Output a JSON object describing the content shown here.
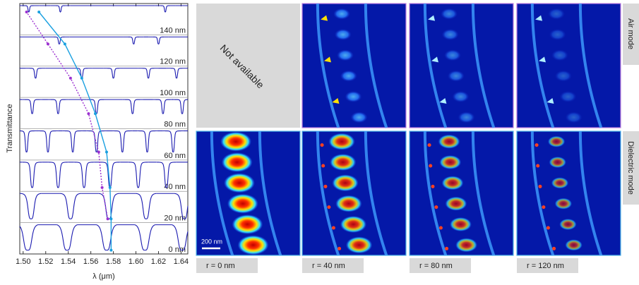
{
  "chart_data": {
    "type": "line",
    "ylabel": "Transmittance",
    "xlabel": "λ (μm)",
    "xlim": [
      1.497,
      1.646
    ],
    "xticks": [
      {
        "value": 1.5,
        "label": "1.50"
      },
      {
        "value": 1.52,
        "label": "1.52"
      },
      {
        "value": 1.54,
        "label": "1.54"
      },
      {
        "value": 1.56,
        "label": "1.56"
      },
      {
        "value": 1.58,
        "label": "1.58"
      },
      {
        "value": 1.6,
        "label": "1.60"
      },
      {
        "value": 1.62,
        "label": "1.62"
      },
      {
        "value": 1.64,
        "label": "1.64"
      }
    ],
    "series": [
      {
        "name": "0 nm",
        "color": "#1a1ab0",
        "dips": [
          1.504,
          1.539,
          1.574,
          1.608,
          1.641
        ]
      },
      {
        "name": "20 nm",
        "color": "#1a1ab0",
        "dips": [
          1.507,
          1.542,
          1.576,
          1.609,
          1.643
        ]
      },
      {
        "name": "40 nm",
        "color": "#1a1ab0",
        "dips": [
          1.508,
          1.531,
          1.554,
          1.577,
          1.602,
          1.627
        ]
      },
      {
        "name": "60 nm",
        "color": "#1a1ab0",
        "dips": [
          1.503,
          1.522,
          1.544,
          1.565,
          1.588,
          1.61,
          1.633
        ]
      },
      {
        "name": "80 nm",
        "color": "#1a1ab0",
        "dips": [
          1.508,
          1.531,
          1.565,
          1.597,
          1.624,
          1.641
        ]
      },
      {
        "name": "100 nm",
        "color": "#1a1ab0",
        "dips": [
          1.511,
          1.552,
          1.58,
          1.611,
          1.636
        ]
      },
      {
        "name": "120 nm",
        "color": "#1a1ab0",
        "dips": [
          1.532,
          1.598,
          1.62
        ]
      },
      {
        "name": "140 nm",
        "color": "#1a1ab0",
        "dips": [
          1.505,
          1.533,
          1.626
        ]
      }
    ],
    "dielectric_mode": {
      "color": "#1aa0e0",
      "values": [
        1.578,
        1.578,
        1.577,
        1.574,
        1.564,
        1.552,
        1.537,
        1.514
      ]
    },
    "air_mode": {
      "color": "#9b30d0",
      "values": [
        null,
        1.575,
        1.57,
        1.567,
        1.558,
        1.542,
        1.522,
        1.503
      ]
    }
  },
  "field_maps": {
    "row_labels": [
      "Air mode",
      "Dielectric mode"
    ],
    "not_available": "Not available",
    "scale_bar": "200 nm",
    "column_labels": [
      "r = 0 nm",
      "r = 40 nm",
      "r = 80 nm",
      "r = 120 nm"
    ]
  }
}
